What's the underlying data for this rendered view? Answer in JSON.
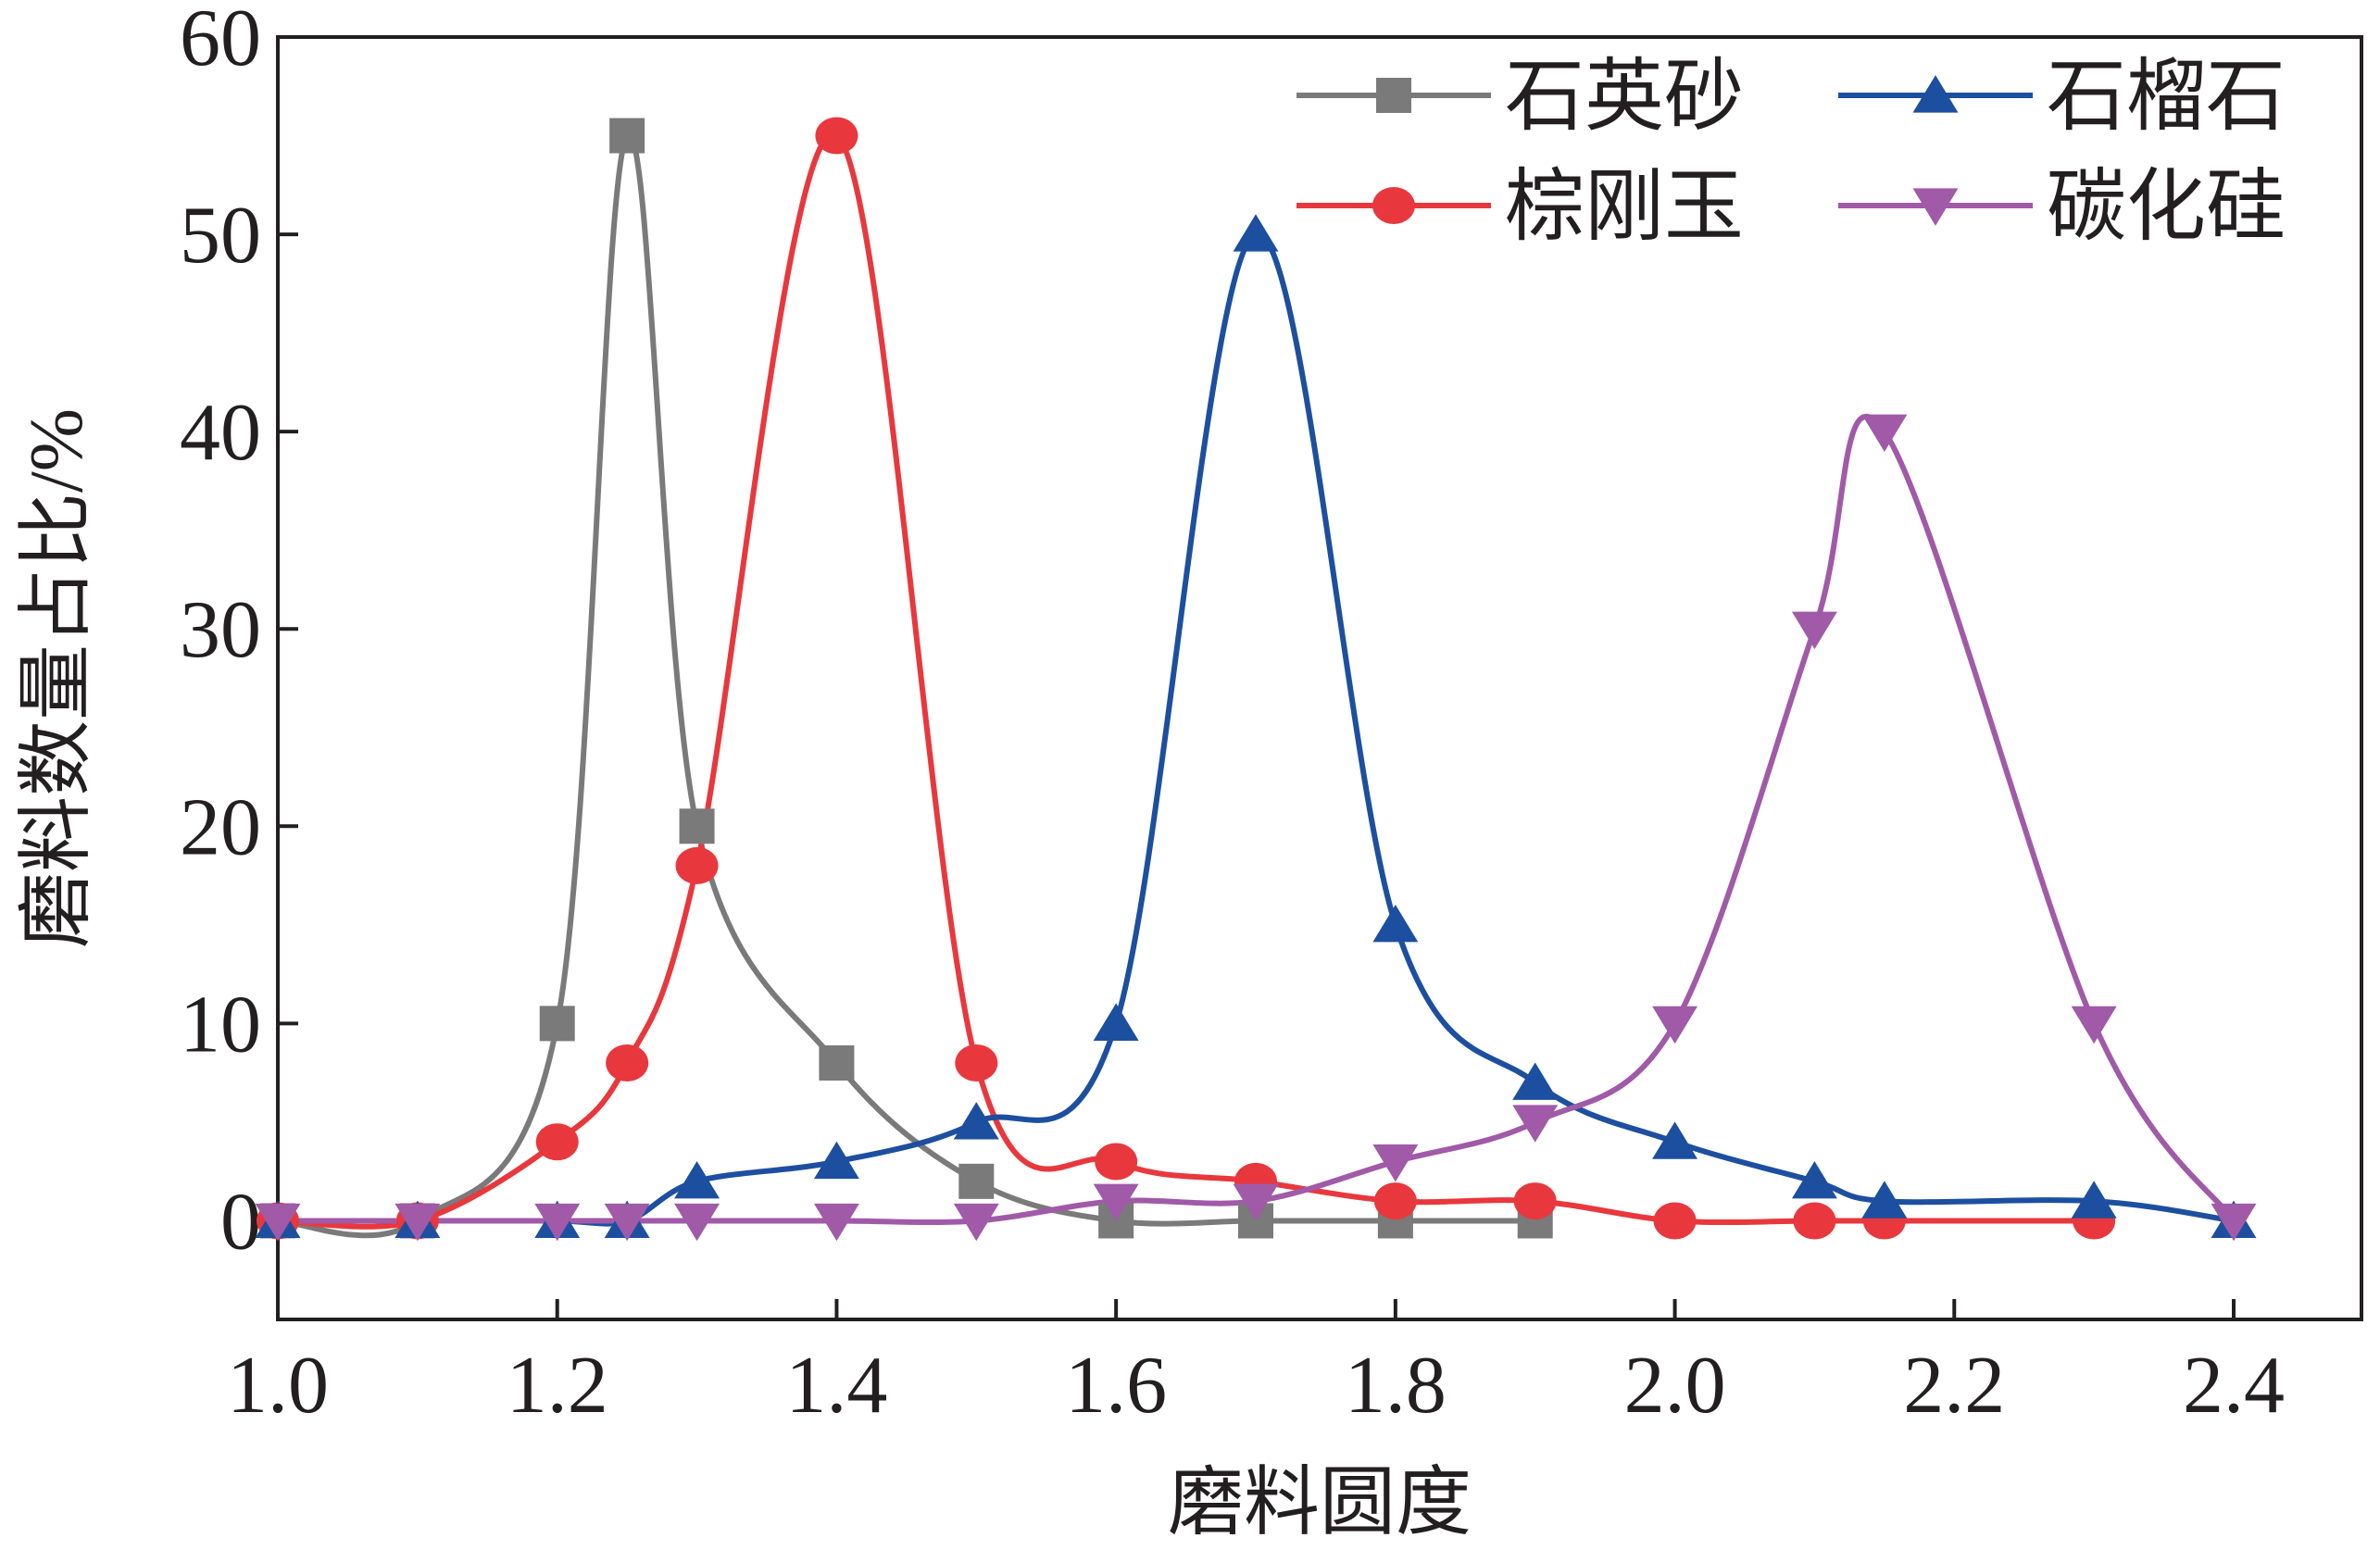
{
  "chart_data": {
    "type": "line",
    "xlabel": "磨料圆度",
    "ylabel": "磨料数量占比/%",
    "xlim": [
      1.0,
      2.4
    ],
    "ylim": [
      -5,
      60
    ],
    "x_ticks": [
      "1.0",
      "1.2",
      "1.4",
      "1.6",
      "1.8",
      "2.0",
      "2.2",
      "2.4"
    ],
    "y_ticks": [
      "0",
      "10",
      "20",
      "30",
      "40",
      "50",
      "60"
    ],
    "grid": false,
    "legend_position": "top-right",
    "series": [
      {
        "name": "石英砂",
        "color": "#7a7a7a",
        "marker": "square",
        "points": [
          [
            1.0,
            0
          ],
          [
            1.1,
            0
          ],
          [
            1.2,
            10
          ],
          [
            1.25,
            55
          ],
          [
            1.3,
            20
          ],
          [
            1.4,
            8
          ],
          [
            1.5,
            2
          ],
          [
            1.6,
            0
          ],
          [
            1.7,
            0
          ],
          [
            1.8,
            0
          ],
          [
            1.9,
            0
          ]
        ]
      },
      {
        "name": "棕刚玉",
        "color": "#e8383d",
        "marker": "circle",
        "points": [
          [
            1.0,
            0
          ],
          [
            1.1,
            0
          ],
          [
            1.2,
            4
          ],
          [
            1.25,
            8
          ],
          [
            1.3,
            18
          ],
          [
            1.4,
            55
          ],
          [
            1.5,
            8
          ],
          [
            1.6,
            3
          ],
          [
            1.7,
            2
          ],
          [
            1.8,
            1
          ],
          [
            1.9,
            1
          ],
          [
            2.0,
            0
          ],
          [
            2.1,
            0
          ],
          [
            2.15,
            0
          ],
          [
            2.3,
            0
          ]
        ]
      },
      {
        "name": "石榴石",
        "color": "#1d4fa0",
        "marker": "triangle-up",
        "points": [
          [
            1.0,
            0
          ],
          [
            1.1,
            0
          ],
          [
            1.2,
            0
          ],
          [
            1.25,
            0
          ],
          [
            1.3,
            2
          ],
          [
            1.4,
            3
          ],
          [
            1.5,
            5
          ],
          [
            1.6,
            10
          ],
          [
            1.7,
            50
          ],
          [
            1.8,
            15
          ],
          [
            1.9,
            7
          ],
          [
            2.0,
            4
          ],
          [
            2.1,
            2
          ],
          [
            2.15,
            1
          ],
          [
            2.3,
            1
          ],
          [
            2.4,
            0
          ]
        ]
      },
      {
        "name": "碳化硅",
        "color": "#a05aa8",
        "marker": "triangle-down",
        "points": [
          [
            1.0,
            0
          ],
          [
            1.1,
            0
          ],
          [
            1.2,
            0
          ],
          [
            1.25,
            0
          ],
          [
            1.3,
            0
          ],
          [
            1.4,
            0
          ],
          [
            1.5,
            0
          ],
          [
            1.6,
            1
          ],
          [
            1.7,
            1
          ],
          [
            1.8,
            3
          ],
          [
            1.9,
            5
          ],
          [
            2.0,
            10
          ],
          [
            2.1,
            30
          ],
          [
            2.15,
            40
          ],
          [
            2.3,
            10
          ],
          [
            2.4,
            0
          ]
        ]
      }
    ]
  }
}
